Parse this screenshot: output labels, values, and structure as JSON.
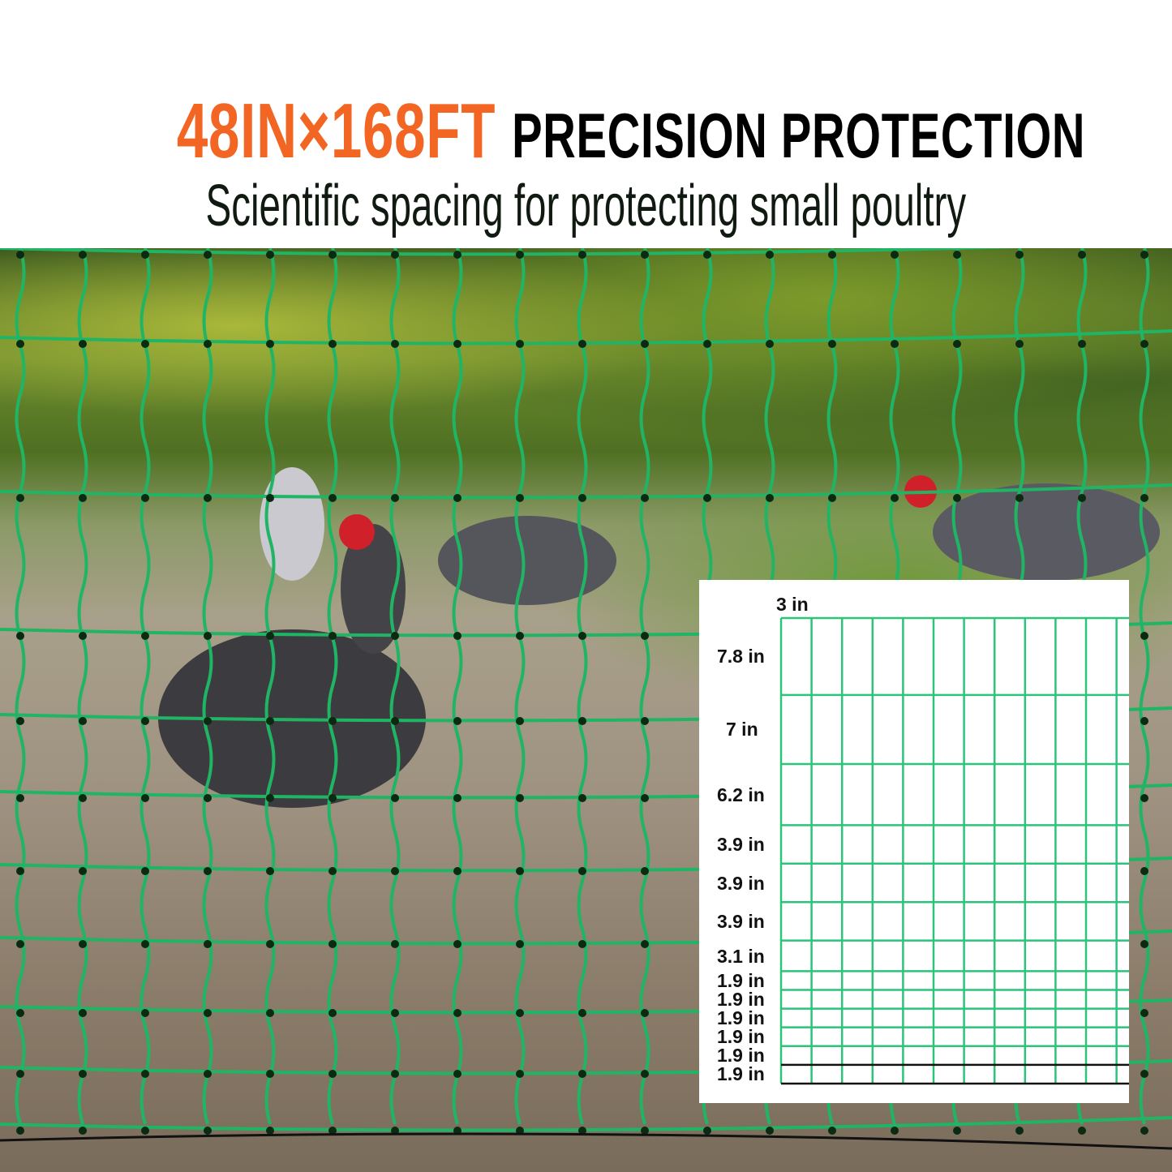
{
  "header": {
    "title_accent": "48IN×168FT",
    "title_main": "PRECISION PROTECTION",
    "subtitle": "Scientific spacing for protecting small poultry"
  },
  "colors": {
    "accent": "#f26522",
    "net_green": "#1fb565",
    "diagram_green": "#2cc37a"
  },
  "photo": {
    "subject": "chickens behind green poultry netting"
  },
  "diagram": {
    "column_spacing_label": "3 in",
    "row_spacings": [
      {
        "label": "7.8 in",
        "value": 7.8
      },
      {
        "label": "7 in",
        "value": 7
      },
      {
        "label": "6.2 in",
        "value": 6.2
      },
      {
        "label": "3.9 in",
        "value": 3.9
      },
      {
        "label": "3.9 in",
        "value": 3.9
      },
      {
        "label": "3.9 in",
        "value": 3.9
      },
      {
        "label": "3.1 in",
        "value": 3.1
      },
      {
        "label": "1.9 in",
        "value": 1.9
      },
      {
        "label": "1.9 in",
        "value": 1.9
      },
      {
        "label": "1.9 in",
        "value": 1.9
      },
      {
        "label": "1.9 in",
        "value": 1.9
      },
      {
        "label": "1.9 in",
        "value": 1.9
      },
      {
        "label": "1.9 in",
        "value": 1.9
      }
    ]
  }
}
